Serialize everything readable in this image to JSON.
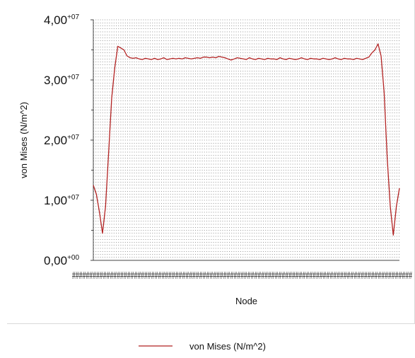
{
  "chart_data": {
    "type": "line",
    "title": "",
    "xlabel": "Node",
    "ylabel": "von Mises (N/m^2)",
    "ylim": [
      0,
      40000000
    ],
    "yticks": [
      {
        "mantissa": "0,00",
        "exp": "+00",
        "value": 0
      },
      {
        "mantissa": "1,00",
        "exp": "+07",
        "value": 10000000
      },
      {
        "mantissa": "2,00",
        "exp": "+07",
        "value": 20000000
      },
      {
        "mantissa": "3,00",
        "exp": "+07",
        "value": 30000000
      },
      {
        "mantissa": "4,00",
        "exp": "+07",
        "value": 40000000
      }
    ],
    "x_tick_text": "###################################################################################################",
    "grid": true,
    "legend_position": "bottom",
    "series": [
      {
        "name": "von Mises (N/m^2)",
        "color": "#b22222",
        "x": [
          0,
          1,
          2,
          3,
          4,
          5,
          6,
          7,
          8,
          9,
          10,
          11,
          12,
          13,
          14,
          15,
          16,
          17,
          18,
          19,
          20,
          21,
          22,
          23,
          24,
          25,
          26,
          27,
          28,
          29,
          30,
          31,
          32,
          33,
          34,
          35,
          36,
          37,
          38,
          39,
          40,
          41,
          42,
          43,
          44,
          45,
          46,
          47,
          48,
          49,
          50,
          51,
          52,
          53,
          54,
          55,
          56,
          57,
          58,
          59,
          60,
          61,
          62,
          63,
          64,
          65,
          66,
          67,
          68,
          69,
          70,
          71,
          72,
          73,
          74,
          75,
          76,
          77,
          78,
          79,
          80,
          81,
          82,
          83,
          84,
          85,
          86,
          87,
          88,
          89,
          90,
          91,
          92,
          93,
          94,
          95,
          96,
          97,
          98,
          99,
          100
        ],
        "values": [
          12500000,
          11000000,
          8000000,
          4500000,
          9000000,
          18000000,
          27000000,
          32000000,
          35600000,
          35300000,
          35000000,
          34000000,
          33700000,
          33600000,
          33700000,
          33500000,
          33400000,
          33600000,
          33500000,
          33400000,
          33600000,
          33400000,
          33500000,
          33700000,
          33400000,
          33500000,
          33600000,
          33500000,
          33600000,
          33500000,
          33700000,
          33600000,
          33500000,
          33600000,
          33700000,
          33600000,
          33800000,
          33800000,
          33700000,
          33800000,
          33700000,
          33900000,
          33800000,
          33700000,
          33500000,
          33300000,
          33500000,
          33700000,
          33600000,
          33500000,
          33400000,
          33700000,
          33500000,
          33400000,
          33600000,
          33500000,
          33400000,
          33600000,
          33500000,
          33500000,
          33400000,
          33700000,
          33500000,
          33400000,
          33600000,
          33500000,
          33400000,
          33500000,
          33700000,
          33500000,
          33400000,
          33600000,
          33500000,
          33500000,
          33400000,
          33600000,
          33500000,
          33400000,
          33500000,
          33700000,
          33500000,
          33400000,
          33600000,
          33500000,
          33500000,
          33400000,
          33600000,
          33500000,
          33400000,
          33600000,
          33800000,
          34500000,
          35000000,
          36000000,
          34000000,
          28000000,
          17000000,
          9000000,
          4200000,
          9000000,
          12000000
        ]
      }
    ]
  }
}
